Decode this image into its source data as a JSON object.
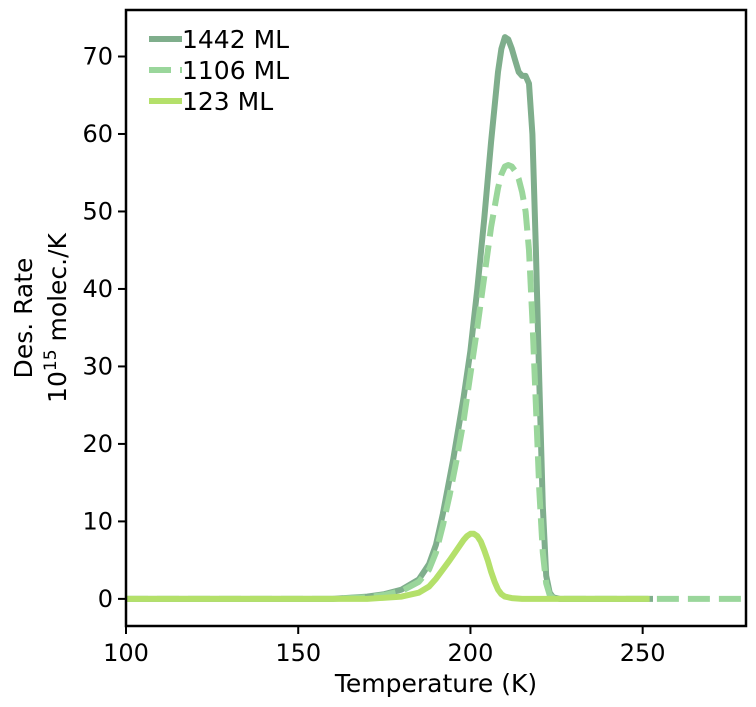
{
  "chart_data": {
    "type": "line",
    "xlabel": "Temperature (K)",
    "ylabel_line1": "Des. Rate",
    "ylabel_line2_base": "10",
    "ylabel_line2_exp": "15",
    "ylabel_line2_unit": " molec./K",
    "xlim": [
      100,
      280
    ],
    "ylim": [
      -3.5,
      76
    ],
    "xticks": [
      100,
      150,
      200,
      250
    ],
    "yticks": [
      0,
      10,
      20,
      30,
      40,
      50,
      60,
      70
    ],
    "legend_position": "top-left",
    "series": [
      {
        "name": "1442 ML",
        "color": "#7fae8c",
        "dash": "solid",
        "x": [
          100,
          160,
          170,
          175,
          180,
          185,
          188,
          190,
          192,
          195,
          198,
          200,
          202,
          204,
          206,
          208,
          209,
          210,
          211,
          212,
          213,
          214,
          215,
          216,
          217,
          218,
          219,
          220,
          221,
          222,
          223,
          224,
          226,
          230,
          253
        ],
        "y": [
          0,
          0,
          0.3,
          0.6,
          1.2,
          2.5,
          4.5,
          7,
          11,
          18,
          26,
          32,
          40,
          49,
          59,
          68,
          71,
          72.5,
          72.2,
          71,
          69.5,
          68,
          67.5,
          67.5,
          66.5,
          60,
          45,
          28,
          12,
          3,
          0.8,
          0.2,
          0,
          0,
          0
        ]
      },
      {
        "name": "1106 ML",
        "color": "#9ad69b",
        "dash": "dashed",
        "x": [
          100,
          160,
          170,
          175,
          180,
          185,
          188,
          190,
          192,
          194,
          196,
          198,
          200,
          202,
          204,
          206,
          208,
          209,
          210,
          211,
          212,
          213,
          214,
          215,
          216,
          217,
          218,
          219,
          220,
          221,
          222,
          223,
          224,
          226,
          230,
          280
        ],
        "y": [
          0,
          0,
          0.2,
          0.5,
          1,
          2.2,
          3.8,
          6,
          9.5,
          13.5,
          18,
          23,
          29,
          35,
          41.5,
          48,
          53,
          54.8,
          55.8,
          56,
          55.8,
          55.2,
          54.2,
          52.5,
          50,
          45,
          36,
          25,
          14,
          6,
          2,
          0.5,
          0.1,
          0,
          0,
          0
        ]
      },
      {
        "name": "123 ML",
        "color": "#b4e06a",
        "dash": "solid",
        "x": [
          100,
          170,
          180,
          185,
          188,
          190,
          192,
          194,
          196,
          198,
          199,
          200,
          201,
          202,
          203,
          204,
          205,
          206,
          207,
          208,
          209,
          210,
          212,
          215,
          230,
          252
        ],
        "y": [
          0,
          0,
          0.3,
          0.8,
          1.6,
          2.6,
          3.8,
          5,
          6.3,
          7.6,
          8.1,
          8.4,
          8.4,
          8.1,
          7.4,
          6.3,
          5,
          3.5,
          2.2,
          1.2,
          0.6,
          0.3,
          0.1,
          0,
          0,
          0
        ]
      }
    ]
  }
}
